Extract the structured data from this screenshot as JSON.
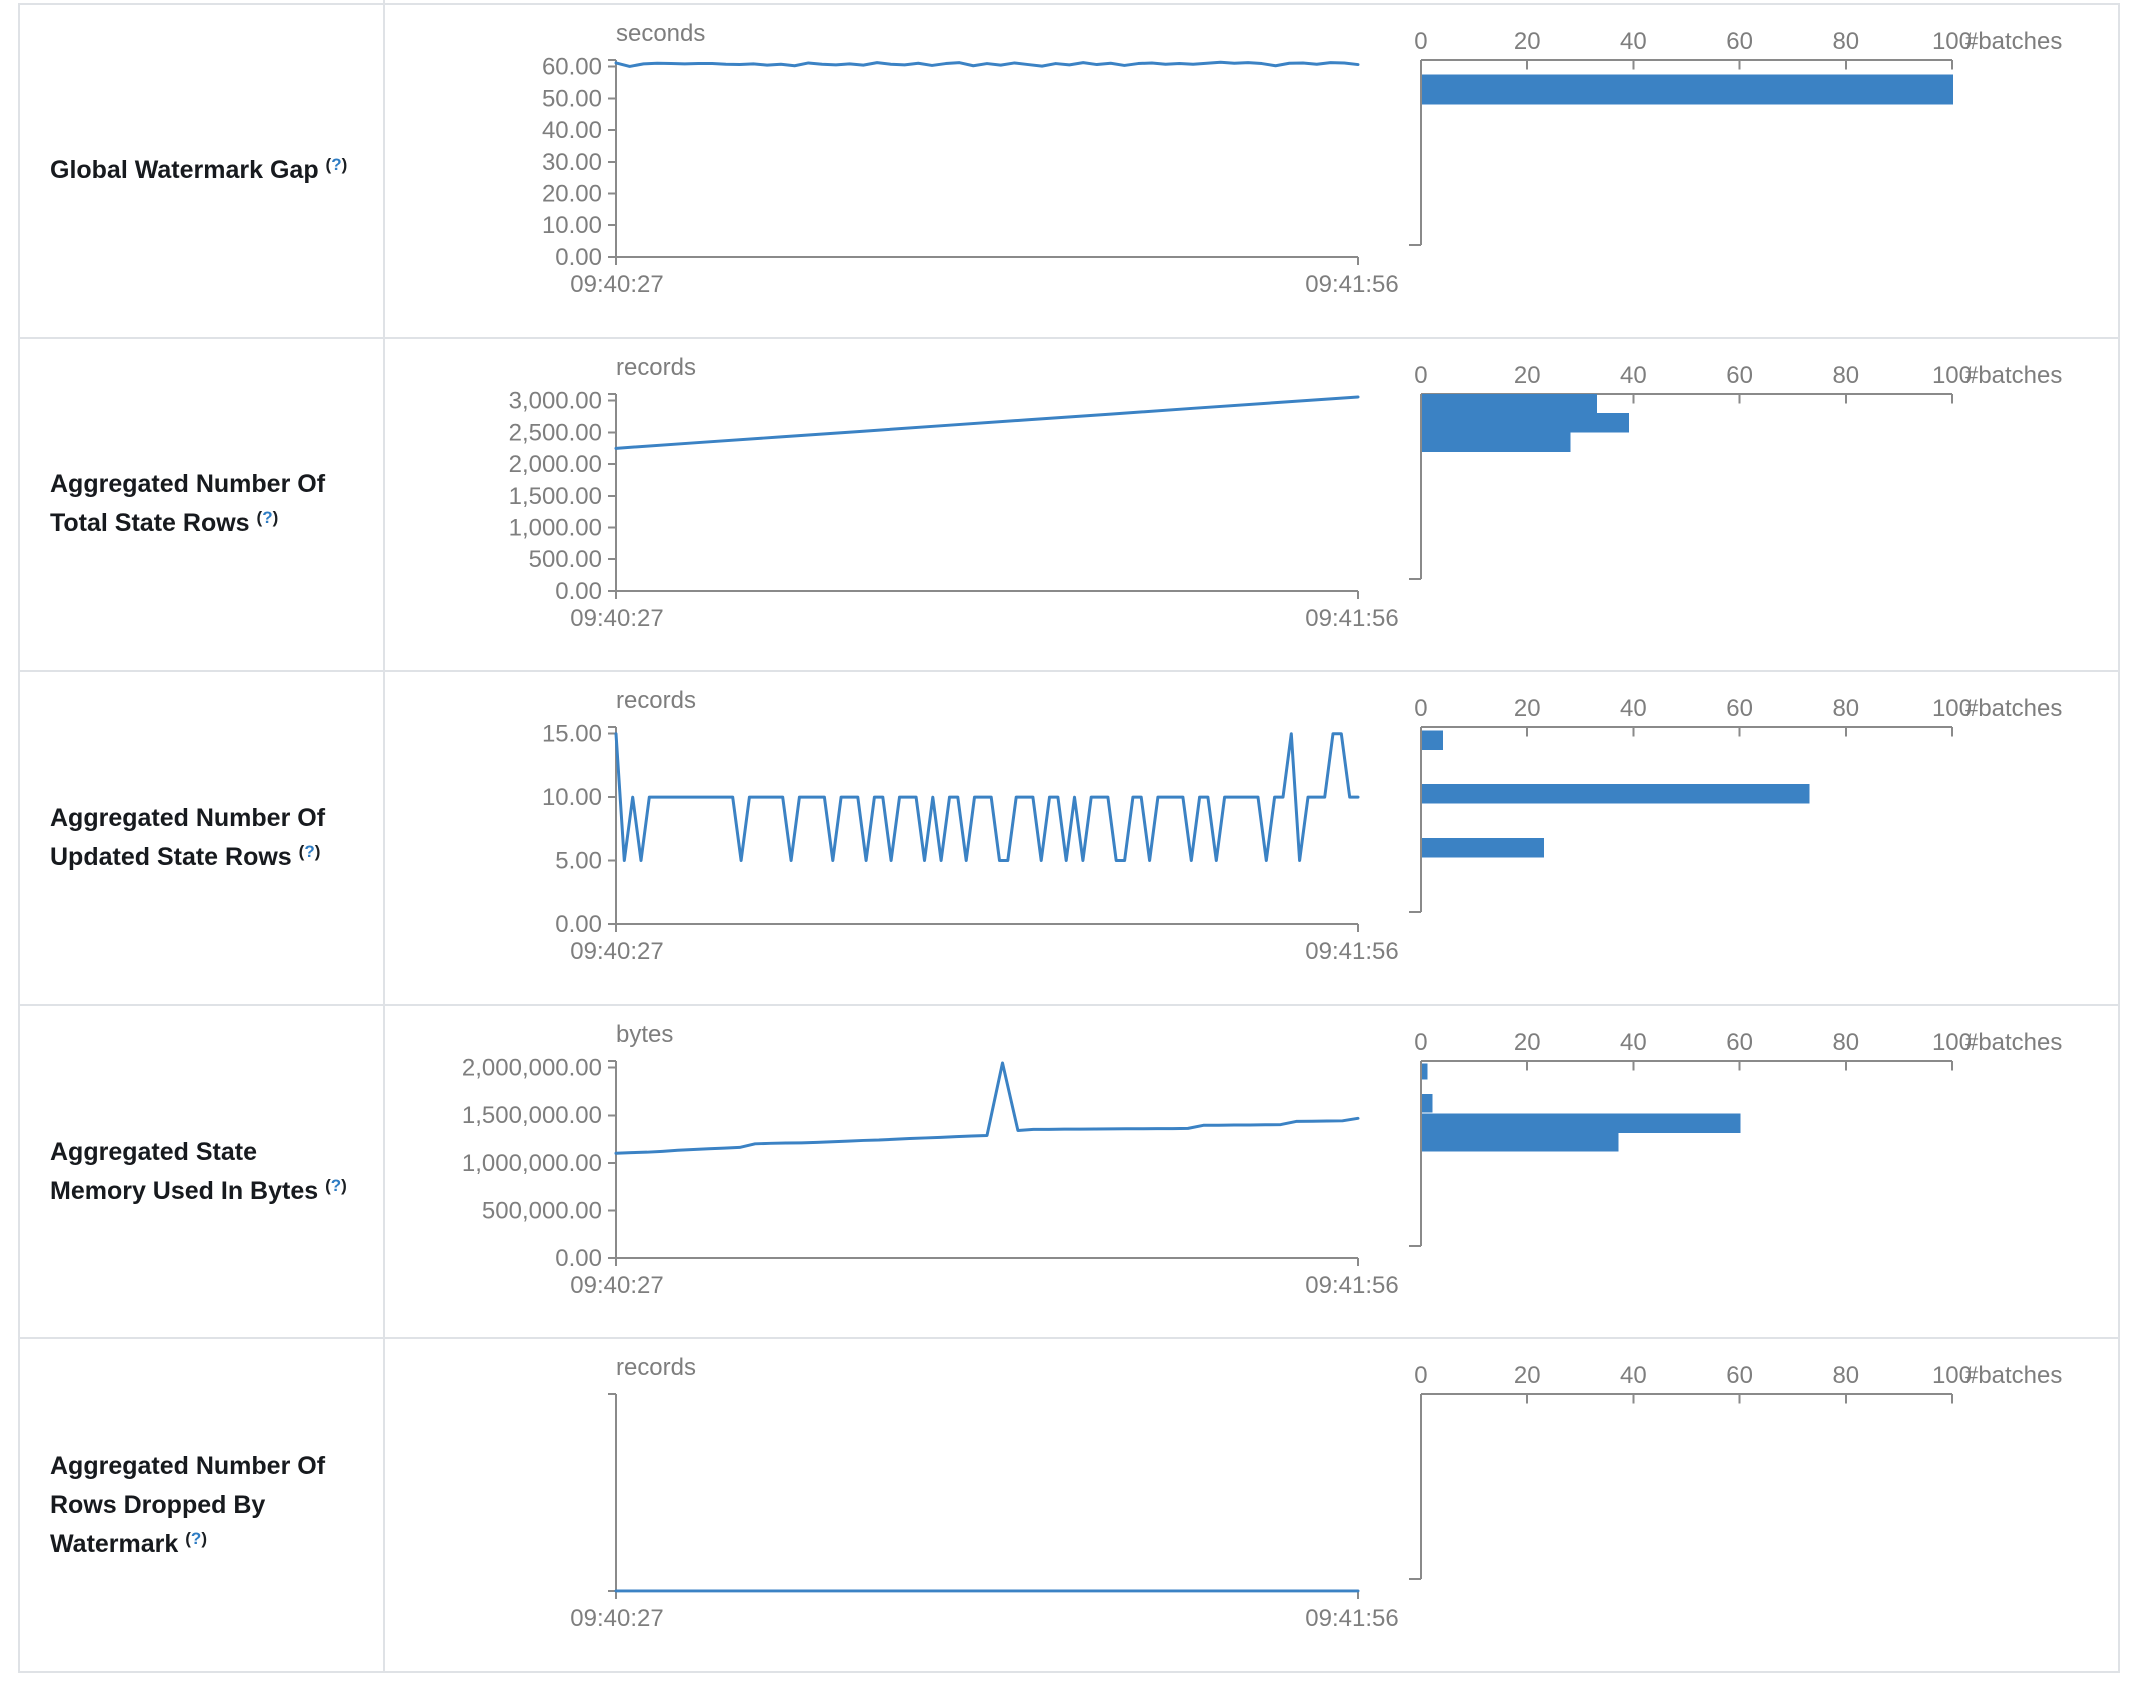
{
  "page": {
    "background": "#ffffff",
    "table_border_color": "#dfe2e6"
  },
  "colors": {
    "accent_blue": "#3b82c4",
    "axis_gray": "#8a8a8a",
    "tick_text_gray": "#7e7e7e",
    "label_dark": "#171a1e",
    "help_blue": "#2e7cc3"
  },
  "timeline": {
    "start": "09:40:27",
    "end": "09:41:56"
  },
  "hist_axis": {
    "unit_label": "#batches",
    "xlim": [
      0,
      100
    ],
    "xticks": [
      0,
      20,
      40,
      60,
      80,
      100
    ]
  },
  "rows": [
    {
      "id": "global-watermark-gap",
      "title": "Global Watermark Gap",
      "help_label": "(?)",
      "chart_data": {
        "type": "line",
        "title": "Global Watermark Gap",
        "unit": "seconds",
        "x_start": "09:40:27",
        "x_end": "09:41:56",
        "ylim": [
          0,
          62.2
        ],
        "yticks": [
          {
            "v": 60,
            "label": "60.00"
          },
          {
            "v": 50,
            "label": "50.00"
          },
          {
            "v": 40,
            "label": "40.00"
          },
          {
            "v": 30,
            "label": "30.00"
          },
          {
            "v": 20,
            "label": "20.00"
          },
          {
            "v": 10,
            "label": "10.00"
          },
          {
            "v": 0,
            "label": "0.00"
          }
        ],
        "values": [
          61.2,
          60.1,
          60.9,
          61.1,
          61.0,
          60.9,
          61.0,
          61.0,
          60.8,
          60.7,
          60.9,
          60.5,
          60.8,
          60.3,
          61.2,
          60.8,
          60.6,
          60.9,
          60.5,
          61.3,
          60.8,
          60.6,
          61.1,
          60.4,
          61.0,
          61.3,
          60.3,
          61.0,
          60.5,
          61.2,
          60.7,
          60.2,
          61.0,
          60.6,
          61.3,
          60.7,
          61.1,
          60.4,
          61.0,
          61.2,
          60.8,
          61.0,
          60.8,
          61.1,
          61.4,
          61.1,
          61.3,
          61.0,
          60.3,
          61.1,
          61.2,
          60.8,
          61.3,
          61.2,
          60.7
        ]
      },
      "hist_data": {
        "type": "bar",
        "unit": "#batches",
        "xlim": [
          0,
          100
        ],
        "bars": [
          {
            "count": 100,
            "y0_frac": 0.08,
            "h_frac": 0.16
          }
        ]
      }
    },
    {
      "id": "aggregated-total-state-rows",
      "title": "Aggregated Number Of Total State Rows",
      "help_label": "(?)",
      "chart_data": {
        "type": "line",
        "title": "Aggregated Number Of Total State Rows",
        "unit": "records",
        "x_start": "09:40:27",
        "x_end": "09:41:56",
        "ylim": [
          0,
          3110
        ],
        "yticks": [
          {
            "v": 3000,
            "label": "3,000.00"
          },
          {
            "v": 2500,
            "label": "2,500.00"
          },
          {
            "v": 2000,
            "label": "2,000.00"
          },
          {
            "v": 1500,
            "label": "1,500.00"
          },
          {
            "v": 1000,
            "label": "1,000.00"
          },
          {
            "v": 500,
            "label": "500.00"
          },
          {
            "v": 0,
            "label": "0.00"
          }
        ],
        "values": [
          2250,
          2340,
          2430,
          2520,
          2610,
          2700,
          2790,
          2880,
          2970,
          3060
        ]
      },
      "hist_data": {
        "type": "bar",
        "unit": "#batches",
        "xlim": [
          0,
          100
        ],
        "bars": [
          {
            "count": 33,
            "y0_frac": 0.0,
            "h_frac": 0.105
          },
          {
            "count": 39,
            "y0_frac": 0.105,
            "h_frac": 0.105
          },
          {
            "count": 28,
            "y0_frac": 0.21,
            "h_frac": 0.105
          }
        ]
      }
    },
    {
      "id": "aggregated-updated-state-rows",
      "title": "Aggregated Number Of Updated State Rows",
      "help_label": "(?)",
      "chart_data": {
        "type": "line",
        "title": "Aggregated Number Of Updated State Rows",
        "unit": "records",
        "x_start": "09:40:27",
        "x_end": "09:41:56",
        "ylim": [
          0,
          15.55
        ],
        "yticks": [
          {
            "v": 15,
            "label": "15.00"
          },
          {
            "v": 10,
            "label": "10.00"
          },
          {
            "v": 5,
            "label": "5.00"
          },
          {
            "v": 0,
            "label": "0.00"
          }
        ],
        "values": [
          15,
          5,
          10,
          5,
          10,
          10,
          10,
          10,
          10,
          10,
          10,
          10,
          10,
          10,
          10,
          5,
          10,
          10,
          10,
          10,
          10,
          5,
          10,
          10,
          10,
          10,
          5,
          10,
          10,
          10,
          5,
          10,
          10,
          5,
          10,
          10,
          10,
          5,
          10,
          5,
          10,
          10,
          5,
          10,
          10,
          10,
          5,
          5,
          10,
          10,
          10,
          5,
          10,
          10,
          5,
          10,
          5,
          10,
          10,
          10,
          5,
          5,
          10,
          10,
          5,
          10,
          10,
          10,
          10,
          5,
          10,
          10,
          5,
          10,
          10,
          10,
          10,
          10,
          5,
          10,
          10,
          15,
          5,
          10,
          10,
          10,
          15,
          15,
          10,
          10
        ]
      },
      "hist_data": {
        "type": "bar",
        "unit": "#batches",
        "xlim": [
          0,
          100
        ],
        "bars": [
          {
            "count": 4,
            "y0_frac": 0.02,
            "h_frac": 0.105
          },
          {
            "count": 73,
            "y0_frac": 0.31,
            "h_frac": 0.105
          },
          {
            "count": 23,
            "y0_frac": 0.6,
            "h_frac": 0.105
          }
        ]
      }
    },
    {
      "id": "aggregated-state-memory-used",
      "title": "Aggregated State Memory Used In Bytes",
      "help_label": "(?)",
      "chart_data": {
        "type": "line",
        "title": "Aggregated State Memory Used In Bytes",
        "unit": "bytes",
        "x_start": "09:40:27",
        "x_end": "09:41:56",
        "ylim": [
          0,
          2073000
        ],
        "yticks": [
          {
            "v": 2000000,
            "label": "2,000,000.00"
          },
          {
            "v": 1500000,
            "label": "1,500,000.00"
          },
          {
            "v": 1000000,
            "label": "1,000,000.00"
          },
          {
            "v": 500000,
            "label": "500,000.00"
          },
          {
            "v": 0,
            "label": "0.00"
          }
        ],
        "values": [
          1100000,
          1108000,
          1112000,
          1120000,
          1132000,
          1140000,
          1148000,
          1155000,
          1162000,
          1200000,
          1205000,
          1208000,
          1210000,
          1215000,
          1222000,
          1228000,
          1235000,
          1240000,
          1248000,
          1255000,
          1262000,
          1268000,
          1275000,
          1282000,
          1288000,
          2050000,
          1340000,
          1352000,
          1352000,
          1354000,
          1355000,
          1356000,
          1357000,
          1358000,
          1358000,
          1360000,
          1360000,
          1362000,
          1395000,
          1396000,
          1398000,
          1398000,
          1400000,
          1402000,
          1435000,
          1438000,
          1440000,
          1442000,
          1468000
        ]
      },
      "hist_data": {
        "type": "bar",
        "unit": "#batches",
        "xlim": [
          0,
          100
        ],
        "bars": [
          {
            "count": 1,
            "y0_frac": 0.015,
            "h_frac": 0.085
          },
          {
            "count": 2,
            "y0_frac": 0.18,
            "h_frac": 0.1
          },
          {
            "count": 60,
            "y0_frac": 0.285,
            "h_frac": 0.105
          },
          {
            "count": 37,
            "y0_frac": 0.39,
            "h_frac": 0.1
          }
        ]
      }
    },
    {
      "id": "aggregated-rows-dropped-by-watermark",
      "title": "Aggregated Number Of Rows Dropped By Watermark",
      "help_label": "(?)",
      "chart_data": {
        "type": "line",
        "title": "Aggregated Number Of Rows Dropped By Watermark",
        "unit": "records",
        "x_start": "09:40:27",
        "x_end": "09:41:56",
        "ylim": [
          0,
          1
        ],
        "yticks": [],
        "values": [
          0,
          0,
          0,
          0,
          0
        ]
      },
      "hist_data": {
        "type": "bar",
        "unit": "#batches",
        "xlim": [
          0,
          100
        ],
        "bars": []
      }
    }
  ]
}
